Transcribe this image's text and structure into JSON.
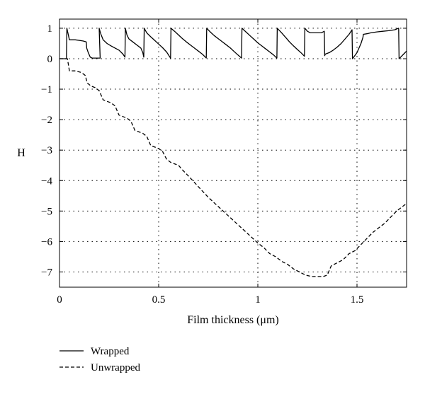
{
  "chart_data": {
    "type": "line",
    "title": "",
    "xlabel": "Film thickness (μm)",
    "ylabel": "H",
    "xlim": [
      0,
      1.75
    ],
    "ylim": [
      -7.5,
      1.3
    ],
    "xticks": [
      0,
      0.5,
      1,
      1.5
    ],
    "xtick_labels": [
      "0",
      "0.5",
      "1",
      "1.5"
    ],
    "yticks": [
      1,
      0,
      -1,
      -2,
      -3,
      -4,
      -5,
      -6,
      -7
    ],
    "ytick_labels": [
      "1",
      "0",
      "−1",
      "−2",
      "−3",
      "−4",
      "−5",
      "−6",
      "−7"
    ],
    "grid": "dotted",
    "legend_position": "below-left",
    "series": [
      {
        "name": "Wrapped",
        "style": "solid",
        "color": "#000000",
        "x": [
          0.0,
          0.02,
          0.035,
          0.037,
          0.05,
          0.08,
          0.1,
          0.12,
          0.135,
          0.137,
          0.145,
          0.155,
          0.165,
          0.17,
          0.18,
          0.19,
          0.205,
          0.2,
          0.208,
          0.22,
          0.24,
          0.26,
          0.28,
          0.3,
          0.32,
          0.33,
          0.332,
          0.34,
          0.35,
          0.37,
          0.39,
          0.4,
          0.41,
          0.42,
          0.425,
          0.427,
          0.44,
          0.46,
          0.48,
          0.5,
          0.52,
          0.54,
          0.56,
          0.562,
          0.58,
          0.6,
          0.62,
          0.64,
          0.66,
          0.68,
          0.7,
          0.72,
          0.74,
          0.742,
          0.76,
          0.78,
          0.8,
          0.82,
          0.84,
          0.86,
          0.88,
          0.9,
          0.918,
          0.92,
          0.94,
          0.96,
          0.98,
          1.0,
          1.02,
          1.04,
          1.06,
          1.08,
          1.096,
          1.098,
          1.12,
          1.14,
          1.16,
          1.18,
          1.2,
          1.22,
          1.235,
          1.237,
          1.25,
          1.265,
          1.267,
          1.27,
          1.3,
          1.32,
          1.335,
          1.337,
          1.34,
          1.36,
          1.38,
          1.4,
          1.42,
          1.44,
          1.46,
          1.475,
          1.477,
          1.48,
          1.5,
          1.52,
          1.53,
          1.532,
          1.55,
          1.57,
          1.6,
          1.63,
          1.66,
          1.69,
          1.71,
          1.712,
          1.72,
          1.735,
          1.75
        ],
        "y": [
          0.0,
          0.0,
          0.0,
          1.0,
          0.62,
          0.62,
          0.6,
          0.58,
          0.55,
          0.35,
          0.2,
          0.05,
          0.02,
          0.02,
          0.02,
          0.02,
          0.02,
          1.0,
          0.82,
          0.62,
          0.5,
          0.42,
          0.35,
          0.28,
          0.15,
          0.05,
          1.0,
          0.78,
          0.65,
          0.55,
          0.45,
          0.4,
          0.35,
          0.2,
          0.05,
          1.0,
          0.85,
          0.72,
          0.6,
          0.48,
          0.36,
          0.22,
          0.02,
          1.0,
          0.9,
          0.78,
          0.66,
          0.55,
          0.45,
          0.35,
          0.25,
          0.15,
          0.02,
          1.0,
          0.88,
          0.76,
          0.66,
          0.56,
          0.46,
          0.36,
          0.24,
          0.12,
          0.02,
          1.0,
          0.88,
          0.76,
          0.64,
          0.52,
          0.42,
          0.32,
          0.22,
          0.12,
          0.02,
          1.0,
          0.85,
          0.7,
          0.55,
          0.42,
          0.3,
          0.18,
          0.08,
          1.0,
          0.9,
          0.85,
          0.85,
          0.85,
          0.85,
          0.85,
          0.9,
          0.1,
          0.15,
          0.2,
          0.28,
          0.38,
          0.5,
          0.65,
          0.8,
          0.95,
          0.0,
          0.02,
          0.2,
          0.5,
          0.7,
          0.8,
          0.82,
          0.85,
          0.88,
          0.9,
          0.92,
          0.95,
          1.0,
          0.0,
          0.05,
          0.15,
          0.25
        ]
      },
      {
        "name": "Unwrapped",
        "style": "dashed",
        "color": "#000000",
        "x": [
          0.0,
          0.02,
          0.04,
          0.05,
          0.08,
          0.11,
          0.13,
          0.14,
          0.16,
          0.18,
          0.2,
          0.22,
          0.24,
          0.26,
          0.28,
          0.3,
          0.32,
          0.34,
          0.36,
          0.38,
          0.4,
          0.42,
          0.44,
          0.46,
          0.48,
          0.5,
          0.52,
          0.54,
          0.56,
          0.58,
          0.6,
          0.62,
          0.65,
          0.7,
          0.75,
          0.8,
          0.85,
          0.9,
          0.95,
          1.0,
          1.03,
          1.06,
          1.09,
          1.12,
          1.15,
          1.18,
          1.21,
          1.24,
          1.27,
          1.29,
          1.31,
          1.33,
          1.35,
          1.37,
          1.4,
          1.43,
          1.46,
          1.49,
          1.52,
          1.55,
          1.58,
          1.61,
          1.64,
          1.67,
          1.7,
          1.73,
          1.75
        ],
        "y": [
          0.0,
          0.0,
          0.0,
          -0.4,
          -0.4,
          -0.45,
          -0.55,
          -0.8,
          -0.9,
          -0.95,
          -1.05,
          -1.35,
          -1.4,
          -1.45,
          -1.55,
          -1.85,
          -1.9,
          -1.95,
          -2.05,
          -2.35,
          -2.4,
          -2.45,
          -2.55,
          -2.85,
          -2.9,
          -2.95,
          -3.05,
          -3.3,
          -3.4,
          -3.45,
          -3.5,
          -3.65,
          -3.85,
          -4.2,
          -4.55,
          -4.85,
          -5.15,
          -5.45,
          -5.75,
          -6.05,
          -6.2,
          -6.4,
          -6.5,
          -6.65,
          -6.75,
          -6.9,
          -7.0,
          -7.1,
          -7.15,
          -7.15,
          -7.15,
          -7.15,
          -7.1,
          -6.8,
          -6.7,
          -6.6,
          -6.4,
          -6.3,
          -6.1,
          -5.9,
          -5.7,
          -5.55,
          -5.4,
          -5.2,
          -5.0,
          -4.85,
          -4.75
        ]
      }
    ]
  }
}
